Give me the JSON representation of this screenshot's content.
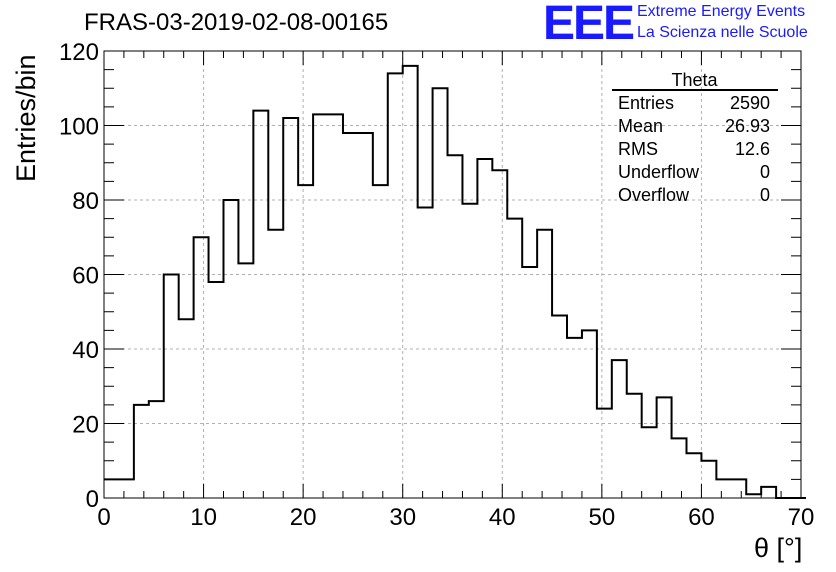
{
  "header": {
    "title": "FRAS-03-2019-02-08-00165",
    "logo_text": "EEE",
    "logo_line1": "Extreme Energy Events",
    "logo_line2": "La Scienza nelle Scuole"
  },
  "stats": {
    "title": "Theta",
    "rows": [
      {
        "label": "Entries",
        "value": "2590"
      },
      {
        "label": "Mean",
        "value": "26.93"
      },
      {
        "label": "RMS",
        "value": "12.6"
      },
      {
        "label": "Underflow",
        "value": "0"
      },
      {
        "label": "Overflow",
        "value": "0"
      }
    ]
  },
  "colors": {
    "logo": "#1a1aff",
    "line": "#000000",
    "grid": "#b0b0b0"
  },
  "chart_data": {
    "type": "histogram",
    "title": "FRAS-03-2019-02-08-00165",
    "xlabel": "θ [°]",
    "ylabel": "Entries/bin",
    "xlim": [
      0,
      70
    ],
    "ylim": [
      0,
      120
    ],
    "bin_width": 1.5,
    "bin_start": 0,
    "values": [
      5,
      5,
      25,
      26,
      60,
      48,
      70,
      58,
      80,
      63,
      104,
      72,
      102,
      84,
      103,
      103,
      98,
      98,
      84,
      114,
      116,
      78,
      110,
      92,
      79,
      91,
      88,
      75,
      62,
      72,
      49,
      43,
      45,
      24,
      37,
      28,
      19,
      27,
      16,
      12,
      10,
      5,
      5,
      1,
      3,
      0,
      0
    ],
    "x_ticks": [
      0,
      10,
      20,
      30,
      40,
      50,
      60,
      70
    ],
    "y_ticks": [
      0,
      20,
      40,
      60,
      80,
      100,
      120
    ],
    "grid": true,
    "legend": "top-right"
  }
}
